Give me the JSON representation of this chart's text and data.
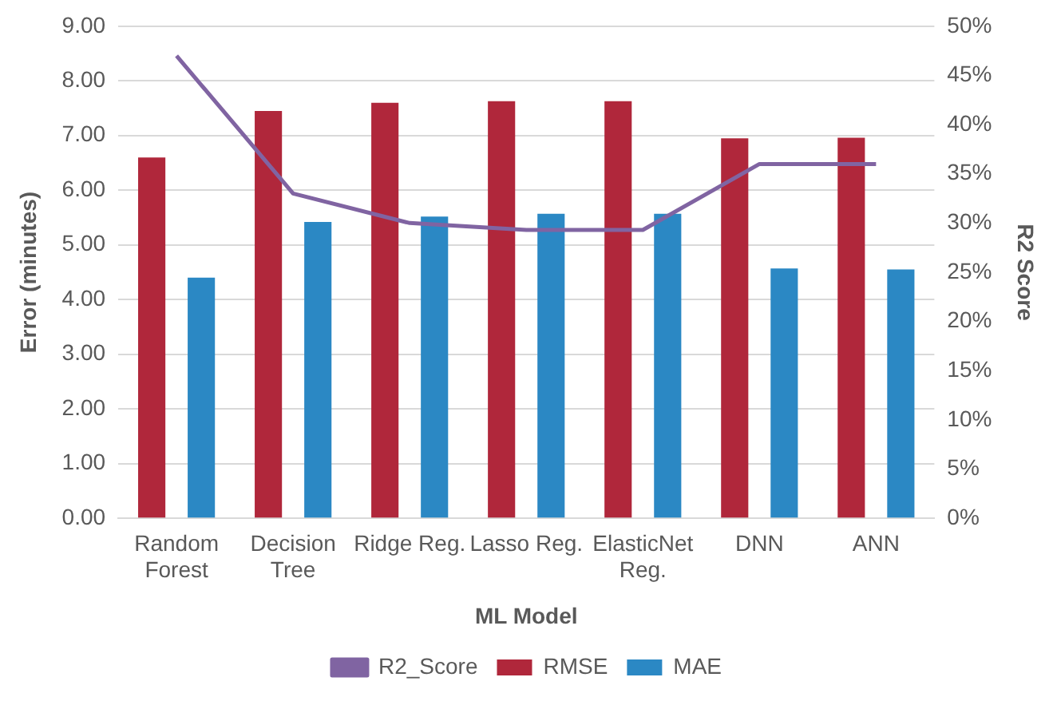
{
  "chart_data": {
    "type": "bar",
    "xlabel": "ML Model",
    "ylabel": "Error (minutes)",
    "y2label": "R2 Score",
    "categories": [
      "Random Forest",
      "Decision Tree",
      "Ridge Reg.",
      "Lasso Reg.",
      "ElasticNet Reg.",
      "DNN",
      "ANN"
    ],
    "series": [
      {
        "name": "RMSE",
        "color": "#b0273b",
        "values": [
          6.6,
          7.45,
          7.6,
          7.63,
          7.63,
          6.95,
          6.96
        ]
      },
      {
        "name": "MAE",
        "color": "#2b88c4",
        "values": [
          4.4,
          5.42,
          5.52,
          5.57,
          5.57,
          4.57,
          4.55
        ]
      },
      {
        "name": "R2_Score",
        "type": "line",
        "axis": "y2",
        "color": "#8064a2",
        "marker": "none",
        "values": [
          47,
          33,
          30,
          29.3,
          29.3,
          36,
          36
        ]
      }
    ],
    "ylim": [
      0,
      9
    ],
    "yticks": [
      {
        "value": 0,
        "label": "0.00"
      },
      {
        "value": 1,
        "label": "1.00"
      },
      {
        "value": 2,
        "label": "2.00"
      },
      {
        "value": 3,
        "label": "3.00"
      },
      {
        "value": 4,
        "label": "4.00"
      },
      {
        "value": 5,
        "label": "5.00"
      },
      {
        "value": 6,
        "label": "6.00"
      },
      {
        "value": 7,
        "label": "7.00"
      },
      {
        "value": 8,
        "label": "8.00"
      },
      {
        "value": 9,
        "label": "9.00"
      }
    ],
    "y2lim": [
      0,
      50
    ],
    "y2ticks": [
      {
        "value": 0,
        "label": "0%"
      },
      {
        "value": 5,
        "label": "5%"
      },
      {
        "value": 10,
        "label": "10%"
      },
      {
        "value": 15,
        "label": "15%"
      },
      {
        "value": 20,
        "label": "20%"
      },
      {
        "value": 25,
        "label": "25%"
      },
      {
        "value": 30,
        "label": "30%"
      },
      {
        "value": 35,
        "label": "35%"
      },
      {
        "value": 40,
        "label": "40%"
      },
      {
        "value": 45,
        "label": "45%"
      },
      {
        "value": 50,
        "label": "50%"
      }
    ],
    "grid": "y",
    "legend": "bottom"
  }
}
